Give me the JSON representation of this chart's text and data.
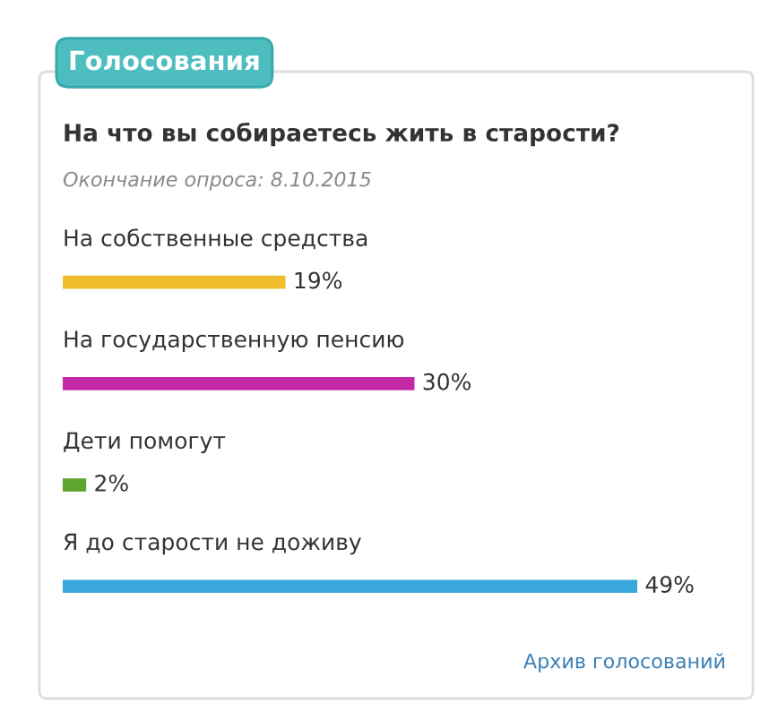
{
  "chart_data": {
    "type": "bar",
    "orientation": "horizontal",
    "title": "На что вы собираетесь жить в старости?",
    "subtitle": "Окончание опроса: 8.10.2015",
    "annotations": [
      "Голосования",
      "Архив голосований"
    ],
    "categories": [
      "На собственные средства",
      "На государственную пенсию",
      "Дети помогут",
      "Я до старости не доживу"
    ],
    "values": [
      19,
      30,
      2,
      49
    ],
    "colors": [
      "#f0bf2e",
      "#c52aa6",
      "#5da431",
      "#3aa7dc"
    ],
    "value_labels": [
      "19%",
      "30%",
      "2%",
      "49%"
    ]
  }
}
